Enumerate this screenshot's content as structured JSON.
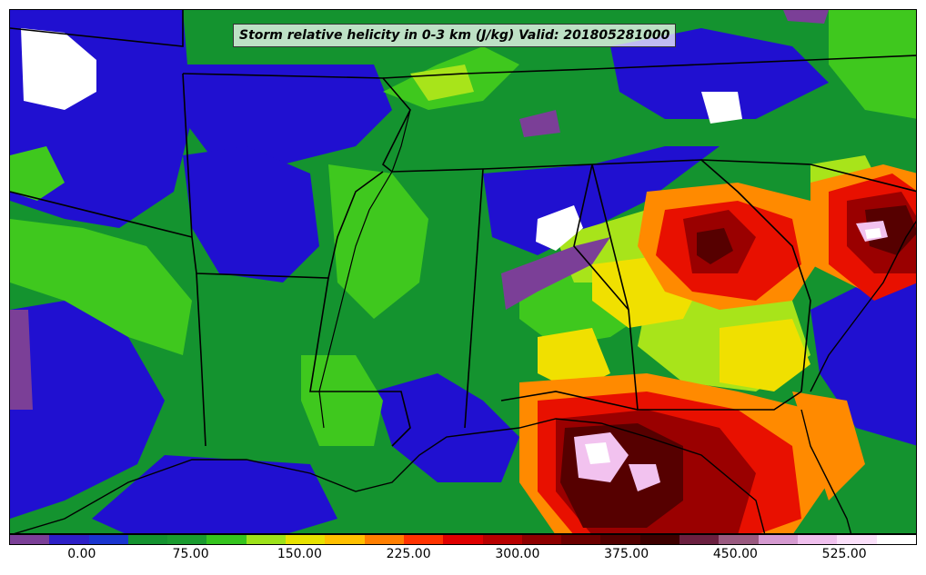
{
  "title": "Storm relative helicity in 0-3 km (J/kg) Valid: 201805281000",
  "colorbar": {
    "colors": [
      "#7b3f97",
      "#2d1fc7",
      "#1a35d0",
      "#14932f",
      "#1a9b2f",
      "#35c41e",
      "#9ee21a",
      "#e8e200",
      "#ffc000",
      "#ff7f00",
      "#ff3300",
      "#e00000",
      "#b80000",
      "#8e0000",
      "#6c0000",
      "#520000",
      "#3d0000",
      "#6b2040",
      "#9a5a80",
      "#d59ad0",
      "#f0c0ee",
      "#fbe0fa",
      "#ffffff"
    ],
    "tick_labels": [
      "0.00",
      "75.00",
      "150.00",
      "225.00",
      "300.00",
      "375.00",
      "450.00",
      "525.00"
    ],
    "tick_values": [
      0,
      75,
      150,
      225,
      300,
      375,
      450,
      525
    ],
    "range": [
      -50,
      575
    ]
  },
  "field_colors": {
    "purple": "#7b3f97",
    "blue": "#2010d0",
    "green": "#14932f",
    "lightgreen": "#3fc81e",
    "lime": "#a8e41a",
    "yellow": "#f0e000",
    "orange": "#ff8a00",
    "red": "#e81000",
    "darkred": "#9a0000",
    "maroon": "#560000",
    "pink": "#f2c2ef",
    "white": "#ffffff"
  }
}
